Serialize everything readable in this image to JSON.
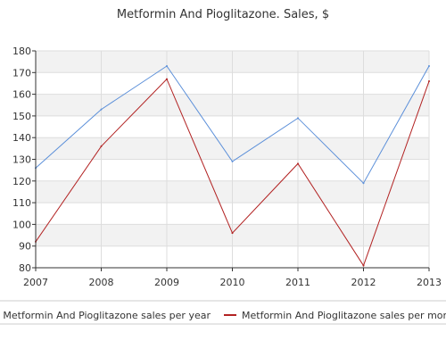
{
  "chart_data": {
    "type": "line",
    "title": "Metformin And Pioglitazone. Sales, $",
    "xlabel": "",
    "ylabel": "",
    "x": [
      "2007",
      "2008",
      "2009",
      "2010",
      "2011",
      "2012",
      "2013"
    ],
    "ylim": [
      80,
      180
    ],
    "yticks": [
      80,
      90,
      100,
      110,
      120,
      130,
      140,
      150,
      160,
      170,
      180
    ],
    "grid": true,
    "legend_position": "bottom",
    "series": [
      {
        "name": "Metformin And Pioglitazone sales per year",
        "color": "#5b8fd9",
        "values": [
          126,
          153,
          173,
          129,
          149,
          119,
          173
        ]
      },
      {
        "name": "Metformin And Pioglitazone sales per month",
        "color": "#b22222",
        "values": [
          92,
          136,
          167,
          96,
          128,
          81,
          166
        ]
      }
    ],
    "colors": {
      "band": "#f2f2f2",
      "gridline": "#dddddd",
      "axis": "#333333"
    }
  }
}
